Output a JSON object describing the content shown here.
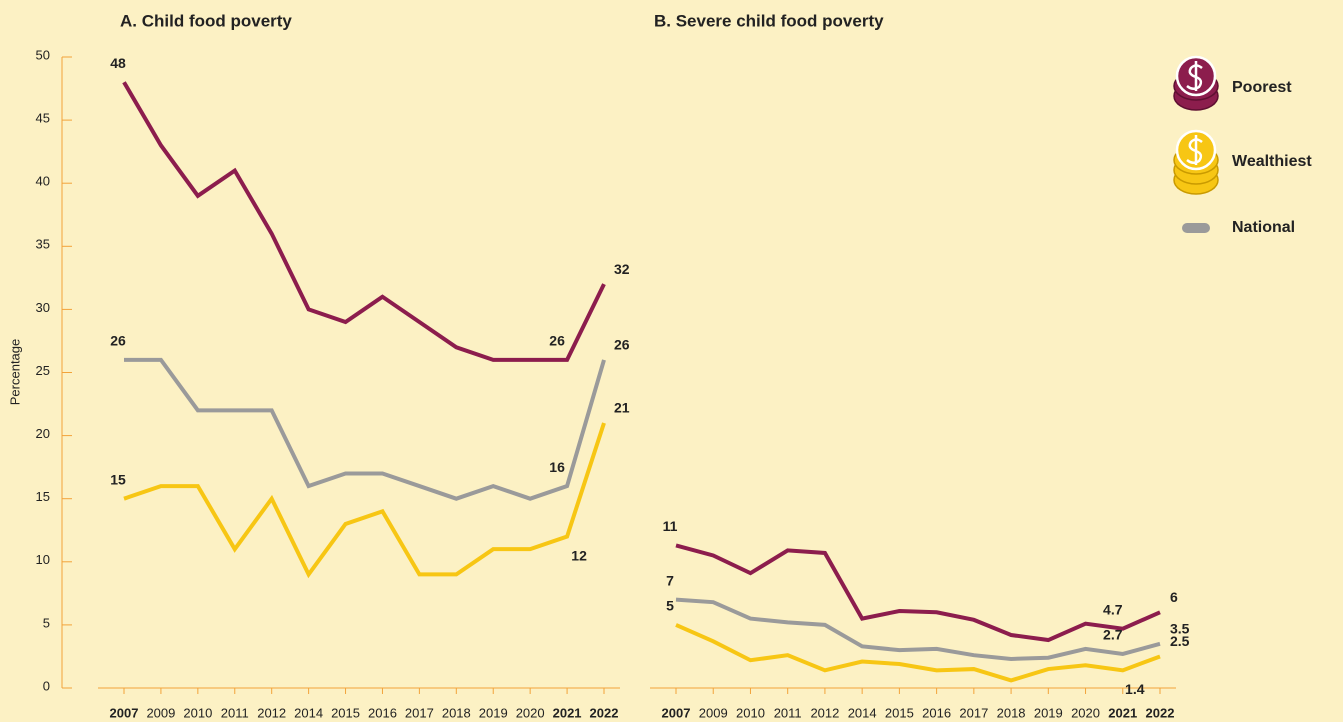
{
  "chart_data": [
    {
      "type": "line",
      "title": "A. Child food poverty",
      "y_label": "Percentage",
      "categories": [
        "2007",
        "2009",
        "2010",
        "2011",
        "2012",
        "2014",
        "2015",
        "2016",
        "2017",
        "2018",
        "2019",
        "2020",
        "2021",
        "2022"
      ],
      "ylim": [
        0,
        50
      ],
      "yticks": [
        0,
        5,
        10,
        15,
        20,
        25,
        30,
        35,
        40,
        45,
        50
      ],
      "series": [
        {
          "name": "Poorest",
          "color": "#8c1d4d",
          "values": [
            48,
            43,
            39,
            41,
            36,
            30,
            29,
            31,
            29,
            27,
            26,
            26,
            26,
            32
          ],
          "value_labels": [
            "48",
            null,
            null,
            null,
            null,
            null,
            null,
            null,
            null,
            null,
            null,
            null,
            "26",
            "32"
          ]
        },
        {
          "name": "Wealthiest",
          "color": "#f7c614",
          "values": [
            15,
            16,
            16,
            11,
            15,
            9,
            13,
            14,
            9,
            9,
            11,
            11,
            12,
            21
          ],
          "value_labels": [
            "15",
            null,
            null,
            null,
            null,
            null,
            null,
            null,
            null,
            null,
            null,
            null,
            "12",
            "21"
          ]
        },
        {
          "name": "National",
          "color": "#9a9a9a",
          "values": [
            26,
            26,
            22,
            22,
            22,
            16,
            17,
            17,
            16,
            15,
            16,
            15,
            16,
            26
          ],
          "value_labels": [
            "26",
            null,
            null,
            null,
            null,
            null,
            null,
            null,
            null,
            null,
            null,
            null,
            "16",
            "26"
          ]
        }
      ]
    },
    {
      "type": "line",
      "title": "B. Severe child food poverty",
      "categories": [
        "2007",
        "2009",
        "2010",
        "2011",
        "2012",
        "2014",
        "2015",
        "2016",
        "2017",
        "2018",
        "2019",
        "2020",
        "2021",
        "2022"
      ],
      "ylim": [
        0,
        50
      ],
      "series": [
        {
          "name": "Poorest",
          "color": "#8c1d4d",
          "values": [
            11.3,
            10.5,
            9.1,
            10.9,
            10.7,
            5.5,
            6.1,
            6.0,
            5.4,
            4.2,
            3.8,
            5.1,
            4.7,
            6.0
          ],
          "value_labels": [
            "11",
            null,
            null,
            null,
            null,
            null,
            null,
            null,
            null,
            null,
            null,
            null,
            "4.7",
            "6"
          ]
        },
        {
          "name": "Wealthiest",
          "color": "#f7c614",
          "values": [
            5.0,
            3.7,
            2.2,
            2.6,
            1.4,
            2.1,
            1.9,
            1.4,
            1.5,
            0.6,
            1.5,
            1.8,
            1.4,
            2.5
          ],
          "value_labels": [
            "5",
            null,
            null,
            null,
            null,
            null,
            null,
            null,
            null,
            null,
            null,
            null,
            "1.4",
            "2.5"
          ]
        },
        {
          "name": "National",
          "color": "#9a9a9a",
          "values": [
            7.0,
            6.8,
            5.5,
            5.2,
            5.0,
            3.3,
            3.0,
            3.1,
            2.6,
            2.3,
            2.4,
            3.1,
            2.7,
            3.5
          ],
          "value_labels": [
            "7",
            null,
            null,
            null,
            null,
            null,
            null,
            null,
            null,
            null,
            null,
            null,
            "2.7",
            "3.5"
          ]
        }
      ]
    }
  ]
}
